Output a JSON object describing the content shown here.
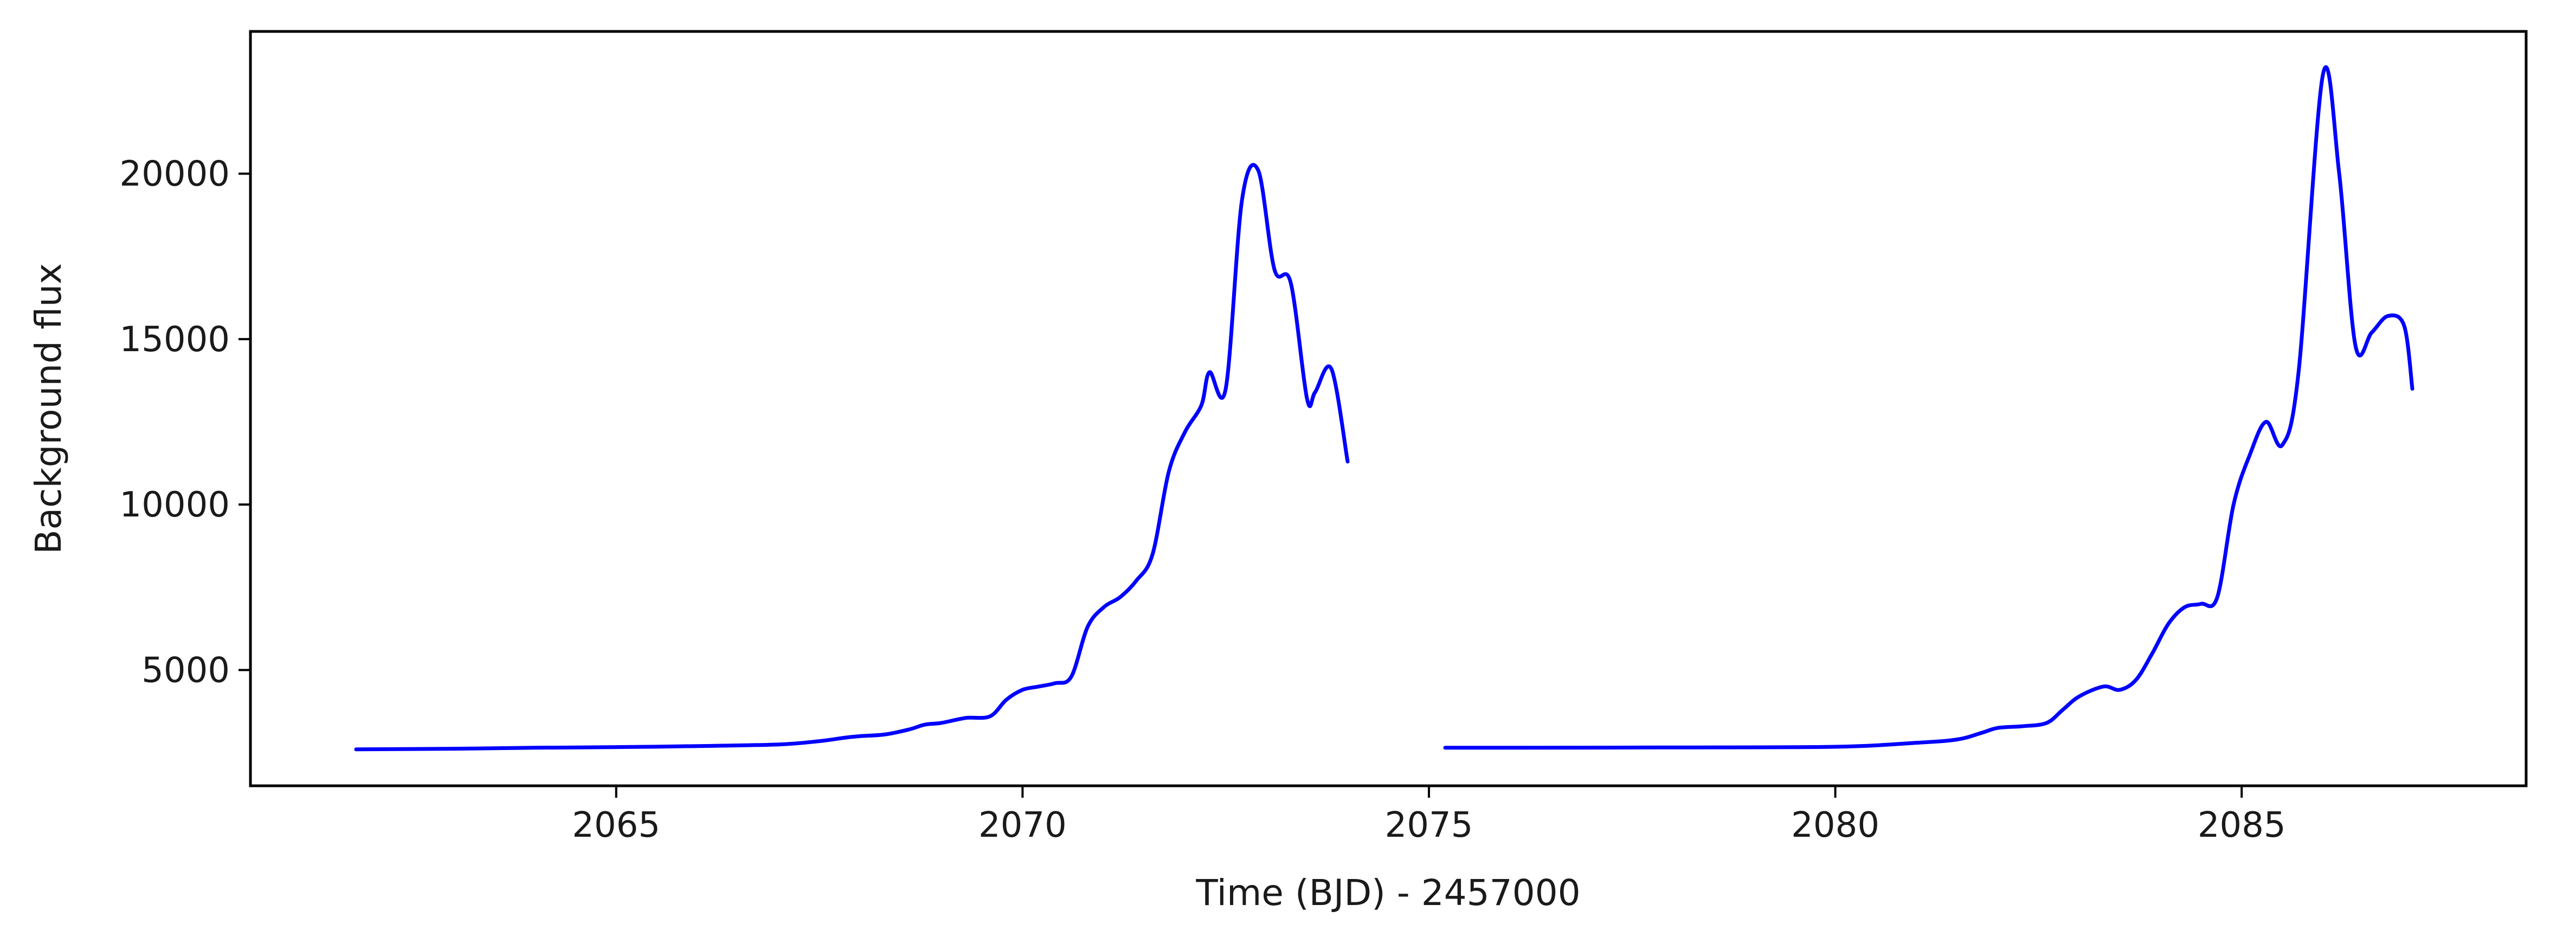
{
  "chart_data": {
    "type": "line",
    "title": "",
    "xlabel": "Time (BJD) - 2457000",
    "ylabel": "Background flux",
    "xlim": [
      2060.5,
      2088.5
    ],
    "ylim": [
      1500,
      24300
    ],
    "xticks": [
      2065,
      2070,
      2075,
      2080,
      2085
    ],
    "yticks": [
      5000,
      10000,
      15000,
      20000
    ],
    "grid": false,
    "legend": null,
    "line_color": "#0000ff",
    "series": [
      {
        "segments": [
          {
            "x": [
              2061.8,
              2063,
              2064,
              2065,
              2066,
              2067,
              2067.5,
              2067.8,
              2068,
              2068.3,
              2068.6,
              2068.8,
              2069,
              2069.3,
              2069.6,
              2069.8,
              2070,
              2070.2,
              2070.4,
              2070.6,
              2070.8,
              2071,
              2071.2,
              2071.4,
              2071.6,
              2071.8,
              2072,
              2072.2,
              2072.3,
              2072.5,
              2072.7,
              2072.9,
              2073.1,
              2073.3,
              2073.5,
              2073.6,
              2073.8,
              2074
            ],
            "y": [
              2600,
              2620,
              2650,
              2670,
              2700,
              2750,
              2850,
              2950,
              3000,
              3050,
              3200,
              3350,
              3400,
              3550,
              3600,
              4100,
              4400,
              4500,
              4600,
              4800,
              6300,
              6900,
              7200,
              7700,
              8500,
              11000,
              12200,
              13000,
              14000,
              13500,
              19200,
              20100,
              17100,
              16700,
              13200,
              13400,
              14100,
              11300
            ]
          },
          {
            "x": [
              2075.2,
              2076,
              2078,
              2080,
              2081,
              2081.5,
              2081.8,
              2082,
              2082.3,
              2082.6,
              2082.8,
              2083,
              2083.3,
              2083.5,
              2083.7,
              2083.9,
              2084.1,
              2084.3,
              2084.5,
              2084.7,
              2084.9,
              2085.1,
              2085.3,
              2085.5,
              2085.7,
              2086,
              2086.2,
              2086.4,
              2086.6,
              2086.8,
              2087,
              2087.1
            ],
            "y": [
              2650,
              2650,
              2660,
              2680,
              2800,
              2900,
              3100,
              3250,
              3300,
              3400,
              3800,
              4200,
              4500,
              4400,
              4700,
              5500,
              6400,
              6900,
              7000,
              7200,
              10000,
              11500,
              12500,
              11800,
              14000,
              23000,
              20000,
              14800,
              15200,
              15700,
              15400,
              13500
            ]
          }
        ]
      }
    ]
  }
}
